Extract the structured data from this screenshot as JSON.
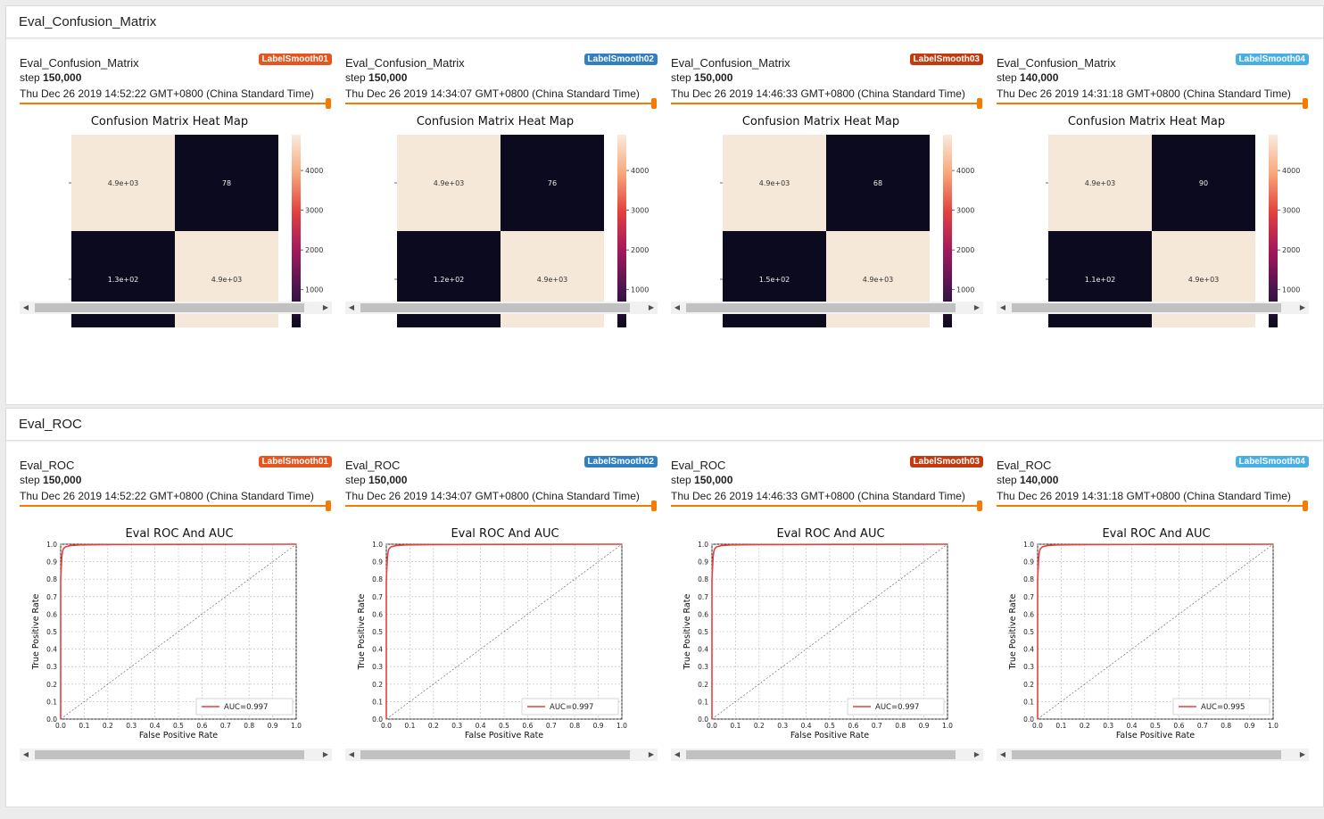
{
  "colors": {
    "accent": "#f57c00",
    "roc_line": "#e8403c",
    "heat_dark": "#0b0a1e",
    "heat_light": "#f6e8d9"
  },
  "sections": [
    {
      "title": "Eval_Confusion_Matrix"
    },
    {
      "title": "Eval_ROC"
    }
  ],
  "runs": [
    {
      "badge": "LabelSmooth01",
      "color": "#e8541e",
      "step_label": "step",
      "step": "150,000",
      "date": "Thu Dec 26 2019 14:52:22 GMT+0800 (China Standard Time)"
    },
    {
      "badge": "LabelSmooth02",
      "color": "#2f7fc1",
      "step_label": "step",
      "step": "150,000",
      "date": "Thu Dec 26 2019 14:34:07 GMT+0800 (China Standard Time)"
    },
    {
      "badge": "LabelSmooth03",
      "color": "#c43a0f",
      "step_label": "step",
      "step": "150,000",
      "date": "Thu Dec 26 2019 14:46:33 GMT+0800 (China Standard Time)"
    },
    {
      "badge": "LabelSmooth04",
      "color": "#46b0e4",
      "step_label": "step",
      "step": "140,000",
      "date": "Thu Dec 26 2019 14:31:18 GMT+0800 (China Standard Time)"
    }
  ],
  "scrollbar": {
    "left_icon": "arrow-left-icon",
    "right_icon": "arrow-right-icon",
    "left_glyph": "◀",
    "right_glyph": "▶"
  },
  "chart_data": [
    {
      "type": "heatmap",
      "title": "Confusion Matrix Heat Map",
      "card_title": "Eval_Confusion_Matrix",
      "matrices": [
        {
          "run": "LabelSmooth01",
          "cells": [
            [
              "4.9e+03",
              "78"
            ],
            [
              "1.3e+02",
              "4.9e+03"
            ]
          ],
          "intensity": [
            [
              1,
              0
            ],
            [
              0,
              1
            ]
          ]
        },
        {
          "run": "LabelSmooth02",
          "cells": [
            [
              "4.9e+03",
              "76"
            ],
            [
              "1.2e+02",
              "4.9e+03"
            ]
          ],
          "intensity": [
            [
              1,
              0
            ],
            [
              0,
              1
            ]
          ]
        },
        {
          "run": "LabelSmooth03",
          "cells": [
            [
              "4.9e+03",
              "68"
            ],
            [
              "1.5e+02",
              "4.9e+03"
            ]
          ],
          "intensity": [
            [
              1,
              0
            ],
            [
              0,
              1
            ]
          ]
        },
        {
          "run": "LabelSmooth04",
          "cells": [
            [
              "4.9e+03",
              "90"
            ],
            [
              "1.1e+02",
              "4.9e+03"
            ]
          ],
          "intensity": [
            [
              1,
              0
            ],
            [
              0,
              1
            ]
          ]
        }
      ],
      "colorbar_ticks": [
        "4000",
        "3000",
        "2000",
        "1000"
      ],
      "colorbar_range": [
        50,
        4900
      ]
    },
    {
      "type": "line",
      "title": "Eval ROC And AUC",
      "card_title": "Eval_ROC",
      "xlabel": "False Positive Rate",
      "ylabel": "True Positive Rate",
      "xlim": [
        0,
        1
      ],
      "ylim": [
        0,
        1
      ],
      "ticks": [
        "0.0",
        "0.1",
        "0.2",
        "0.3",
        "0.4",
        "0.5",
        "0.6",
        "0.7",
        "0.8",
        "0.9",
        "1.0"
      ],
      "curve_x": [
        0.0,
        0.0,
        0.003,
        0.005,
        0.008,
        0.012,
        0.02,
        0.04,
        0.08,
        0.2,
        0.5,
        1.0
      ],
      "curve_y": [
        0.0,
        0.8,
        0.88,
        0.93,
        0.96,
        0.975,
        0.985,
        0.992,
        0.996,
        0.998,
        0.999,
        1.0
      ],
      "series": [
        {
          "name": "AUC=0.997",
          "run": "LabelSmooth01"
        },
        {
          "name": "AUC=0.997",
          "run": "LabelSmooth02"
        },
        {
          "name": "AUC=0.997",
          "run": "LabelSmooth03"
        },
        {
          "name": "AUC=0.995",
          "run": "LabelSmooth04"
        }
      ]
    }
  ]
}
